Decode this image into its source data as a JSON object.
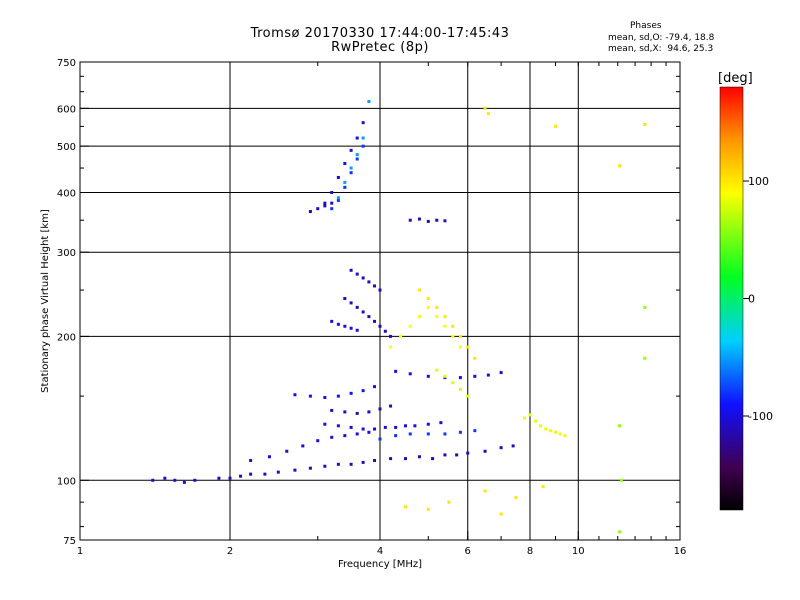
{
  "chart_data": {
    "type": "scatter",
    "title": "Tromsø 20170330 17:44:00-17:45:43",
    "subtitle": "RwPretec (8p)",
    "xlabel": "Frequency [MHz]",
    "ylabel": "Stationary phase Virtual Height [km]",
    "x_scale": "log",
    "y_scale": "log",
    "xlim": [
      1,
      16
    ],
    "ylim": [
      75,
      750
    ],
    "x_ticks": [
      1,
      2,
      4,
      6,
      8,
      10,
      16
    ],
    "y_ticks": [
      75,
      100,
      200,
      300,
      400,
      500,
      600,
      750
    ],
    "x_gridlines": [
      2,
      4,
      6,
      8,
      10
    ],
    "y_gridlines": [
      100,
      200,
      300,
      400,
      500,
      600
    ],
    "grid": true,
    "phase_info": {
      "heading": "Phases",
      "o_line": "mean, sd,O: -79.4, 18.8",
      "x_line": "mean, sd,X:  94.6, 25.3"
    },
    "colorbar": {
      "label": "[deg]",
      "ticks": [
        100,
        0,
        -100
      ],
      "range": [
        -180,
        180
      ],
      "colormap": "rainbow: black-purple-blue-cyan-green-yellow-orange-red"
    },
    "series": [
      {
        "x": [
          1.4,
          1.48,
          1.55,
          1.62,
          1.7
        ],
        "y": [
          100,
          101,
          100,
          99,
          100
        ],
        "phase": -100
      },
      {
        "x": [
          1.9,
          2.0,
          2.1,
          2.2,
          2.35,
          2.5,
          2.7,
          2.9,
          3.1,
          3.3,
          3.5,
          3.7
        ],
        "y": [
          101,
          101,
          102,
          103,
          103,
          104,
          105,
          106,
          107,
          108,
          108,
          109
        ],
        "phase": -110
      },
      {
        "x": [
          3.9,
          4.2,
          4.5,
          4.8,
          5.1,
          5.4,
          5.7,
          6.0,
          6.5,
          7.0,
          7.4
        ],
        "y": [
          110,
          111,
          111,
          112,
          111,
          113,
          113,
          114,
          115,
          117,
          118
        ],
        "phase": -110
      },
      {
        "x": [
          2.2,
          2.4,
          2.6,
          2.8,
          3.0,
          3.2,
          3.4,
          3.6,
          3.8
        ],
        "y": [
          110,
          112,
          115,
          118,
          121,
          123,
          124,
          125,
          126
        ],
        "phase": -100
      },
      {
        "x": [
          2.7,
          2.9,
          3.1,
          3.3,
          3.5,
          3.7,
          3.9
        ],
        "y": [
          151,
          150,
          149,
          150,
          152,
          154,
          157
        ],
        "phase": -90
      },
      {
        "x": [
          3.2,
          3.4,
          3.6,
          3.8,
          4.0,
          4.2
        ],
        "y": [
          140,
          139,
          138,
          139,
          141,
          143
        ],
        "phase": -110
      },
      {
        "x": [
          3.1,
          3.3,
          3.5,
          3.7,
          3.9,
          4.1,
          4.3,
          4.5,
          4.7,
          5.0,
          5.3
        ],
        "y": [
          131,
          130,
          129,
          128,
          128,
          129,
          129,
          130,
          130,
          131,
          132
        ],
        "phase": -100
      },
      {
        "x": [
          4.0,
          4.3,
          4.6,
          5.0,
          5.4,
          5.8,
          6.2
        ],
        "y": [
          122,
          124,
          125,
          125,
          125,
          126,
          127
        ],
        "phase": -80
      },
      {
        "x": [
          4.3,
          4.6,
          5.0,
          5.4,
          5.8,
          6.2,
          6.6,
          7.0
        ],
        "y": [
          169,
          167,
          165,
          164,
          164,
          165,
          166,
          168
        ],
        "phase": -100
      },
      {
        "x": [
          3.4,
          3.5,
          3.6,
          3.7,
          3.8,
          3.9,
          4.0,
          4.1,
          4.2
        ],
        "y": [
          240,
          235,
          230,
          225,
          220,
          215,
          210,
          205,
          200
        ],
        "phase": -110
      },
      {
        "x": [
          3.2,
          3.3,
          3.4,
          3.5,
          3.6
        ],
        "y": [
          215,
          212,
          210,
          208,
          206
        ],
        "phase": -100
      },
      {
        "x": [
          3.5,
          3.6,
          3.7,
          3.8,
          3.9,
          4.0
        ],
        "y": [
          275,
          270,
          265,
          260,
          255,
          250
        ],
        "phase": -110
      },
      {
        "x": [
          3.1,
          3.2,
          3.3,
          3.4,
          3.5,
          3.6,
          3.7
        ],
        "y": [
          380,
          400,
          430,
          460,
          490,
          520,
          560
        ],
        "phase": -100
      },
      {
        "x": [
          3.2,
          3.3,
          3.4,
          3.5,
          3.6,
          3.7
        ],
        "y": [
          370,
          385,
          410,
          440,
          470,
          500
        ],
        "phase": -80
      },
      {
        "x": [
          3.3,
          3.4,
          3.5,
          3.6,
          3.7,
          3.8
        ],
        "y": [
          390,
          420,
          450,
          480,
          520,
          620
        ],
        "phase": -50
      },
      {
        "x": [
          2.9,
          3.0,
          3.1,
          3.2
        ],
        "y": [
          365,
          370,
          375,
          380
        ],
        "phase": -110
      },
      {
        "x": [
          4.6,
          4.8,
          5.0,
          5.2,
          5.4
        ],
        "y": [
          350,
          352,
          348,
          350,
          349
        ],
        "phase": -110
      },
      {
        "x": [
          4.2,
          4.4,
          4.6,
          4.8,
          5.0,
          5.2,
          5.4,
          5.6,
          5.8
        ],
        "y": [
          190,
          200,
          210,
          220,
          230,
          220,
          210,
          200,
          190
        ],
        "phase": 90
      },
      {
        "x": [
          4.8,
          5.0,
          5.2,
          5.4,
          5.6,
          5.8,
          6.0,
          6.2
        ],
        "y": [
          250,
          240,
          230,
          220,
          210,
          200,
          190,
          180
        ],
        "phase": 100
      },
      {
        "x": [
          5.2,
          5.4,
          5.6,
          5.8,
          6.0
        ],
        "y": [
          170,
          165,
          160,
          155,
          150
        ],
        "phase": 80
      },
      {
        "x": [
          7.8,
          8.0,
          8.2,
          8.4,
          8.6,
          8.8,
          9.0,
          9.2,
          9.4
        ],
        "y": [
          135,
          137,
          133,
          130,
          128,
          127,
          126,
          125,
          124
        ],
        "phase": 85
      },
      {
        "x": [
          6.5,
          6.6,
          9.0,
          12.1,
          13.6
        ],
        "y": [
          600,
          585,
          550,
          455,
          555
        ],
        "phase": 100
      },
      {
        "x": [
          4.5,
          5.0,
          5.5,
          6.5,
          7.0,
          7.5,
          8.5
        ],
        "y": [
          88,
          87,
          90,
          95,
          85,
          92,
          97
        ],
        "phase": 100
      },
      {
        "x": [
          12.1,
          12.2,
          13.6,
          13.6,
          12.1
        ],
        "y": [
          78,
          100,
          180,
          230,
          130
        ],
        "phase": 60
      }
    ]
  }
}
